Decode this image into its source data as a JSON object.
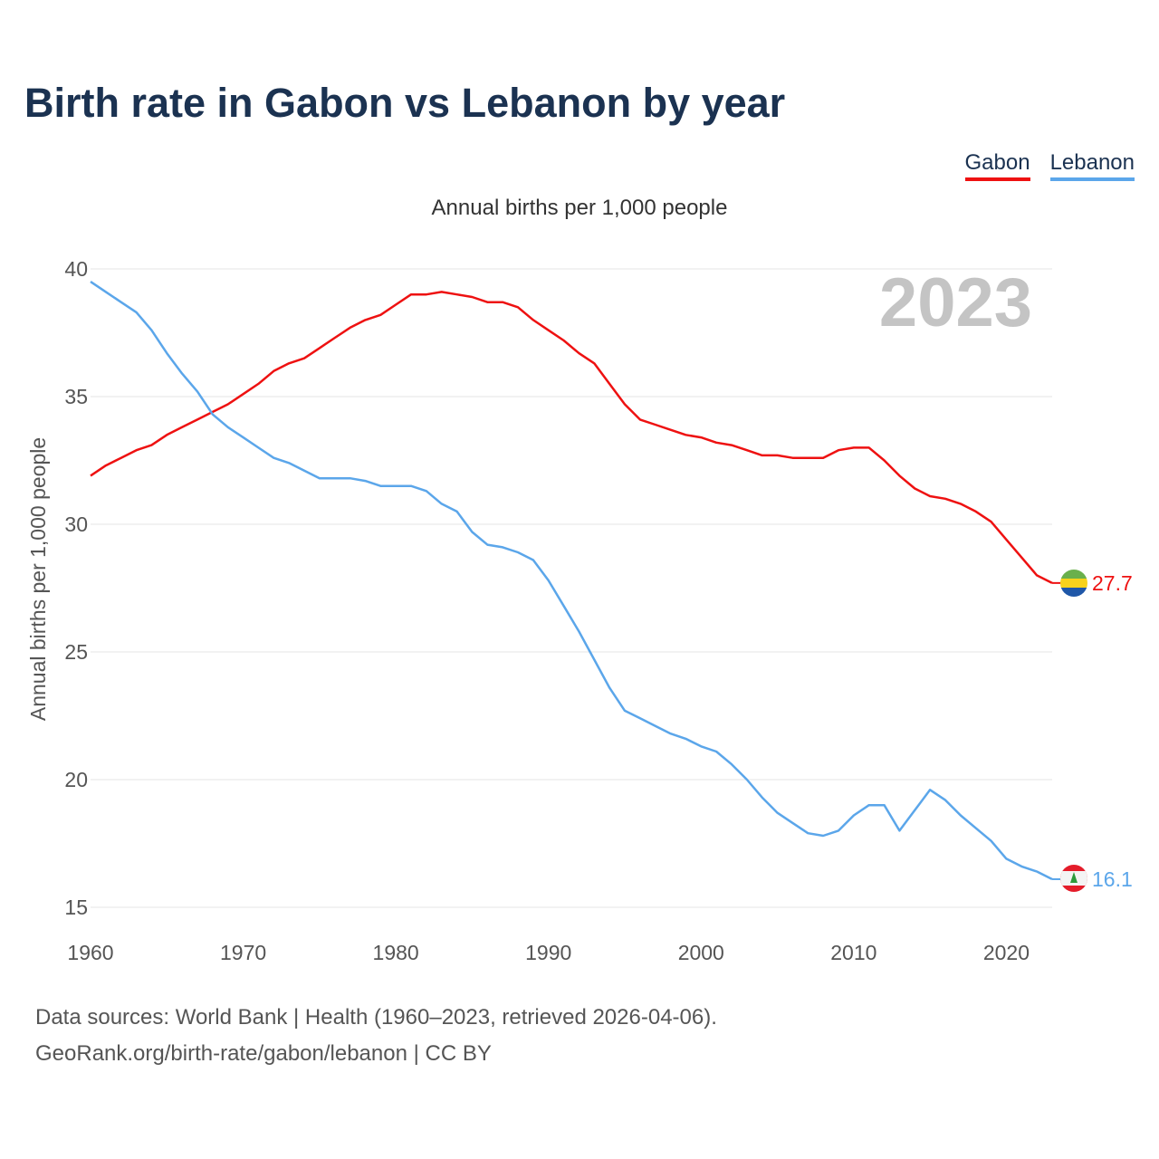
{
  "title": "Birth rate in Gabon vs Lebanon by year",
  "subtitle": "Annual births per 1,000 people",
  "legend": {
    "gabon": "Gabon",
    "lebanon": "Lebanon"
  },
  "year_label": "2023",
  "footer": {
    "line1": "Data sources: World Bank | Health (1960–2023, retrieved 2026-04-06).",
    "line2": "GeoRank.org/birth-rate/gabon/lebanon | CC BY"
  },
  "colors": {
    "gabon": "#ee1111",
    "lebanon": "#5ba6ea",
    "title": "#1b3251",
    "grid": "#e4e4e4",
    "year": "#c4c4c4"
  },
  "chart_data": {
    "type": "line",
    "title": "Birth rate in Gabon vs Lebanon by year",
    "ylabel": "Annual births per 1,000 people",
    "xlabel": "",
    "xlim": [
      1960,
      2023
    ],
    "ylim": [
      15,
      40
    ],
    "x_ticks": [
      1960,
      1970,
      1980,
      1990,
      2000,
      2010,
      2020
    ],
    "y_ticks": [
      15,
      20,
      25,
      30,
      35,
      40
    ],
    "x": [
      1960,
      1961,
      1962,
      1963,
      1964,
      1965,
      1966,
      1967,
      1968,
      1969,
      1970,
      1971,
      1972,
      1973,
      1974,
      1975,
      1976,
      1977,
      1978,
      1979,
      1980,
      1981,
      1982,
      1983,
      1984,
      1985,
      1986,
      1987,
      1988,
      1989,
      1990,
      1991,
      1992,
      1993,
      1994,
      1995,
      1996,
      1997,
      1998,
      1999,
      2000,
      2001,
      2002,
      2003,
      2004,
      2005,
      2006,
      2007,
      2008,
      2009,
      2010,
      2011,
      2012,
      2013,
      2014,
      2015,
      2016,
      2017,
      2018,
      2019,
      2020,
      2021,
      2022,
      2023
    ],
    "series": [
      {
        "name": "Gabon",
        "color": "#ee1111",
        "end_label": "27.7",
        "values": [
          31.9,
          32.3,
          32.6,
          32.9,
          33.1,
          33.5,
          33.8,
          34.1,
          34.4,
          34.7,
          35.1,
          35.5,
          36.0,
          36.3,
          36.5,
          36.9,
          37.3,
          37.7,
          38.0,
          38.2,
          38.6,
          39.0,
          39.0,
          39.1,
          39.0,
          38.9,
          38.7,
          38.7,
          38.5,
          38.0,
          37.6,
          37.2,
          36.7,
          36.3,
          35.5,
          34.7,
          34.1,
          33.9,
          33.7,
          33.5,
          33.4,
          33.2,
          33.1,
          32.9,
          32.7,
          32.7,
          32.6,
          32.6,
          32.6,
          32.9,
          33.0,
          33.0,
          32.5,
          31.9,
          31.4,
          31.1,
          31.0,
          30.8,
          30.5,
          30.1,
          29.4,
          28.7,
          28.0,
          27.7
        ]
      },
      {
        "name": "Lebanon",
        "color": "#5ba6ea",
        "end_label": "16.1",
        "values": [
          39.5,
          39.1,
          38.7,
          38.3,
          37.6,
          36.7,
          35.9,
          35.2,
          34.3,
          33.8,
          33.4,
          33.0,
          32.6,
          32.4,
          32.1,
          31.8,
          31.8,
          31.8,
          31.7,
          31.5,
          31.5,
          31.5,
          31.3,
          30.8,
          30.5,
          29.7,
          29.2,
          29.1,
          28.9,
          28.6,
          27.8,
          26.8,
          25.8,
          24.7,
          23.6,
          22.7,
          22.4,
          22.1,
          21.8,
          21.6,
          21.3,
          21.1,
          20.6,
          20.0,
          19.3,
          18.7,
          18.3,
          17.9,
          17.8,
          18.0,
          18.6,
          19.0,
          19.0,
          18.0,
          18.8,
          19.6,
          19.2,
          18.6,
          18.1,
          17.6,
          16.9,
          16.6,
          16.4,
          16.1
        ]
      }
    ]
  }
}
